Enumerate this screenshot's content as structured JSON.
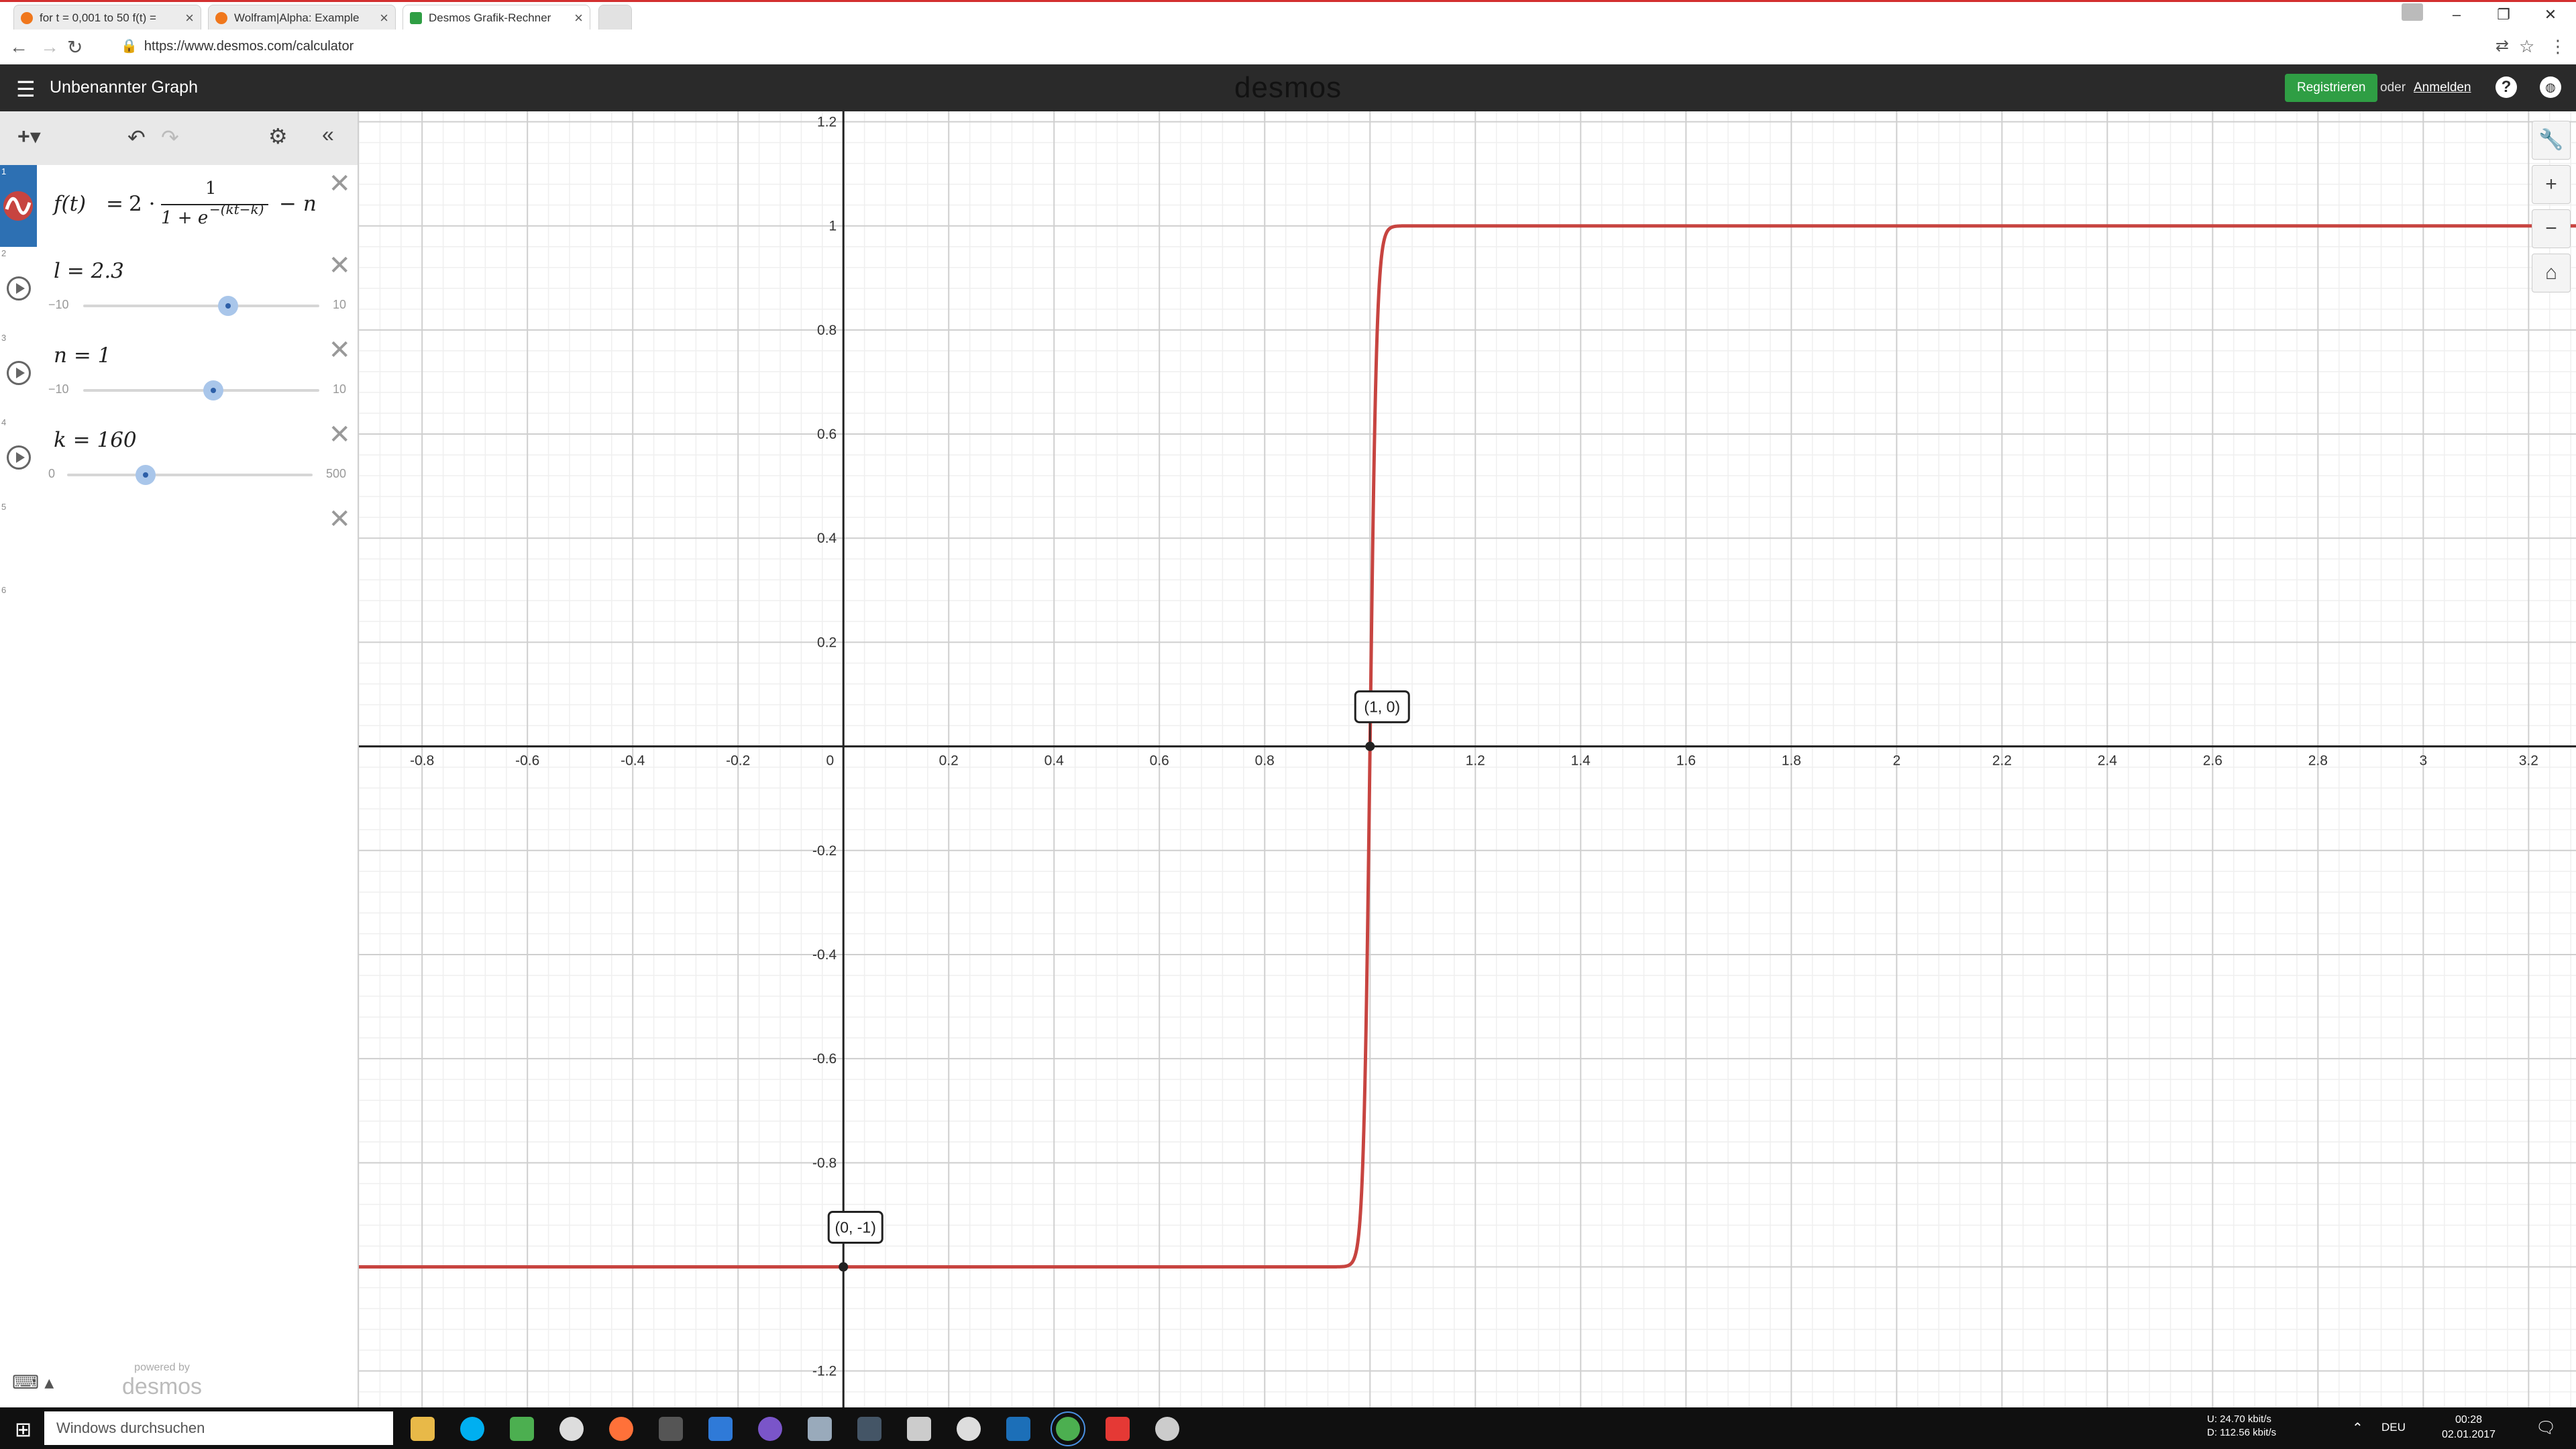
{
  "browser": {
    "tabs": [
      {
        "label": "for t = 0,001 to 50 f(t) = ",
        "color": "#f0771c",
        "active": false
      },
      {
        "label": "Wolfram|Alpha: Example",
        "color": "#f0771c",
        "active": false
      },
      {
        "label": "Desmos Grafik-Rechner",
        "color": "#2f9e44",
        "active": true
      }
    ],
    "url": "https://www.desmos.com/calculator"
  },
  "header": {
    "graph_title": "Unbenannter Graph",
    "logo": "desmos",
    "signup_label": "Registrieren",
    "or_label": "oder",
    "login_label": "Anmelden",
    "help_icon": "?",
    "globe_icon": "globe"
  },
  "expressions": {
    "items": [
      {
        "index": "1",
        "latex_text": "f(t) = 2 · 1/(1 + e^−(kt−k)) − n",
        "color": "#c74440"
      },
      {
        "index": "2",
        "label": "l = 2.3",
        "min": "−10",
        "max": "10",
        "value": 2.3,
        "lo": -10,
        "hi": 10
      },
      {
        "index": "3",
        "label": "n = 1",
        "min": "−10",
        "max": "10",
        "value": 1,
        "lo": -10,
        "hi": 10
      },
      {
        "index": "4",
        "label": "k = 160",
        "min": "0",
        "max": "500",
        "value": 160,
        "lo": 0,
        "hi": 500
      },
      {
        "index": "5"
      },
      {
        "index": "6"
      }
    ],
    "formula_parts": {
      "lhs": "f(t)",
      "eq": "=",
      "two": "2 ·",
      "num": "1",
      "den": "1 + e",
      "exp": "−(kt−k)",
      "tail": "− n"
    }
  },
  "panel_footer": {
    "powered_by": "powered by",
    "brand": "desmos"
  },
  "chart_data": {
    "type": "line",
    "x_ticks": [
      "-0.8",
      "-0.6",
      "-0.4",
      "-0.2",
      "0",
      "0.2",
      "0.4",
      "0.6",
      "0.8",
      "1.2",
      "1.4",
      "1.6",
      "1.8",
      "2",
      "2.2",
      "2.4",
      "2.6",
      "2.8",
      "3",
      "3.2"
    ],
    "y_ticks": [
      "1.2",
      "1",
      "0.8",
      "0.6",
      "0.4",
      "0.2",
      "-0.2",
      "-0.4",
      "-0.6",
      "-0.8",
      "-1.2"
    ],
    "xlim": [
      -0.92,
      3.29
    ],
    "ylim": [
      -1.27,
      1.22
    ],
    "grid": true,
    "params": {
      "k": 160,
      "n": 1
    },
    "points": [
      {
        "x": 1,
        "y": 0,
        "label": "(1, 0)"
      },
      {
        "x": 0,
        "y": -1,
        "label": "(0, -1)"
      }
    ],
    "color": "#c74440"
  },
  "taskbar": {
    "search_placeholder": "Windows durchsuchen",
    "upload": "U:    24.70 kbit/s",
    "download": "D:   112.56 kbit/s",
    "lang": "DEU",
    "time": "00:28",
    "date": "02.01.2017"
  }
}
